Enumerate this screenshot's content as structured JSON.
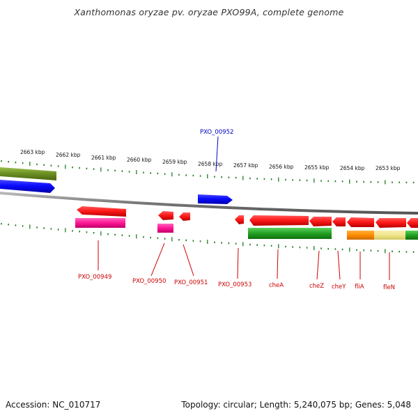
{
  "title": "Xanthomonas oryzae pv. oryzae PXO99A, complete genome",
  "footer": {
    "accession": "Accession: NC_010717",
    "summary": "Topology: circular; Length: 5,240,075 bp; Genes: 5,048"
  },
  "scale": {
    "tick_labels": [
      "2663 kbp",
      "2662 kbp",
      "2661 kbp",
      "2660 kbp",
      "2659 kbp",
      "2658 kbp",
      "2657 kbp",
      "2656 kbp",
      "2655 kbp",
      "2654 kbp",
      "2653 kbp"
    ]
  },
  "genes": {
    "PXO_00952": "PXO_00952",
    "PXO_00949": "PXO_00949",
    "PXO_00950": "PXO_00950",
    "PXO_00951": "PXO_00951",
    "PXO_00953": "PXO_00953",
    "cheA": "cheA",
    "cheZ": "cheZ",
    "cheY": "cheY",
    "fliA": "fliA",
    "fleN": "fleN"
  },
  "colors": {
    "forward_gene": "#1a1aff",
    "reverse_gene": "#ff1a1a",
    "olive_feature": "#6b8e23",
    "magenta_feature": "#ff1493",
    "green_feature": "#22a022",
    "orange_feature": "#ff8c00",
    "khaki_feature": "#f0e68c",
    "tick": "#1f7a1f",
    "backbone": "#888888",
    "forward_label": "#0000cc",
    "reverse_label": "#cc0000"
  }
}
